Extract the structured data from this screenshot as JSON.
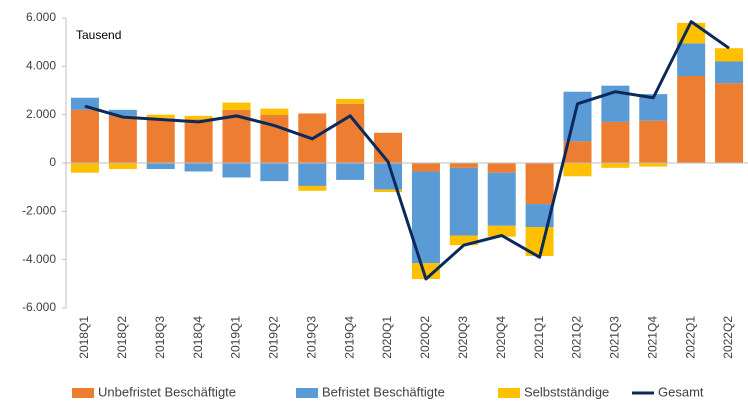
{
  "chart_data": {
    "type": "bar",
    "stacked": true,
    "annotation": "Tausend",
    "categories": [
      "2018Q1",
      "2018Q2",
      "2018Q3",
      "2018Q4",
      "2019Q1",
      "2019Q2",
      "2019Q3",
      "2019Q4",
      "2020Q1",
      "2020Q2",
      "2020Q3",
      "2020Q4",
      "2021Q1",
      "2021Q2",
      "2021Q3",
      "2021Q4",
      "2022Q1",
      "2022Q2"
    ],
    "series": [
      {
        "name": "Unbefristet Beschäftigte",
        "color": "#ed7d31",
        "values": [
          2200,
          1950,
          1850,
          1800,
          2200,
          2000,
          2050,
          2450,
          1250,
          -350,
          -200,
          -400,
          -1700,
          900,
          1700,
          1750,
          3600,
          3300
        ]
      },
      {
        "name": "Befristet Beschäftigte",
        "color": "#5b9bd5",
        "values": [
          500,
          250,
          -250,
          -350,
          -600,
          -750,
          -950,
          -700,
          -1100,
          -3800,
          -2800,
          -2200,
          -950,
          2050,
          1500,
          1100,
          1350,
          900
        ]
      },
      {
        "name": "Selbstständige",
        "color": "#ffc000",
        "values": [
          -400,
          -250,
          150,
          150,
          300,
          250,
          -200,
          200,
          -100,
          -650,
          -400,
          -450,
          -1200,
          -550,
          -200,
          -150,
          850,
          550
        ]
      },
      {
        "name": "Gesamt",
        "type": "line",
        "color": "#0b2a5b",
        "values": [
          2350,
          1900,
          1800,
          1700,
          1950,
          1550,
          1000,
          1950,
          50,
          -4800,
          -3400,
          -3000,
          -3900,
          2450,
          2950,
          2700,
          5850,
          4750
        ]
      }
    ],
    "ylim": [
      -6000,
      6000
    ],
    "yticks": [
      {
        "value": -6000,
        "label": "-6.000"
      },
      {
        "value": -4000,
        "label": "-4.000"
      },
      {
        "value": -2000,
        "label": "-2.000"
      },
      0,
      {
        "value": 2000,
        "label": "2.000"
      },
      {
        "value": 4000,
        "label": "4.000"
      },
      {
        "value": 6000,
        "label": "6.000"
      }
    ],
    "grid": false,
    "legend": "bottom"
  }
}
